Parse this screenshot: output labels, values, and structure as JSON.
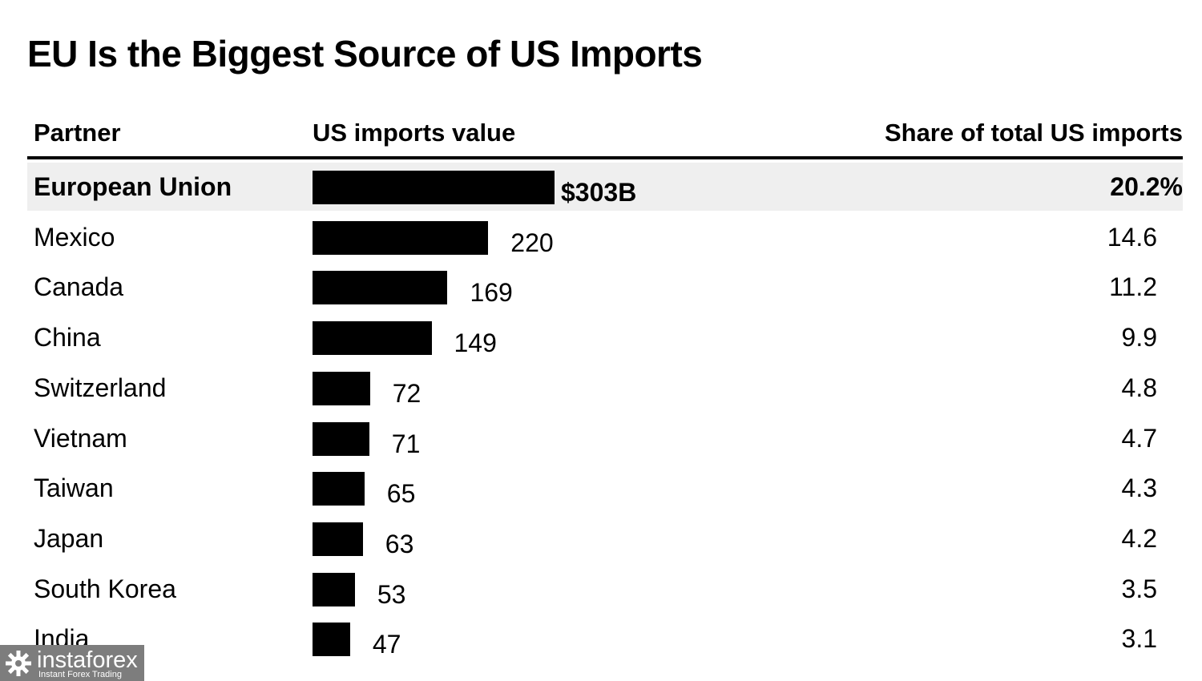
{
  "title": "EU Is the Biggest Source of US Imports",
  "headers": {
    "partner": "Partner",
    "value": "US imports value",
    "share": "Share of total US imports"
  },
  "chart_data": {
    "type": "bar",
    "orientation": "horizontal",
    "title": "EU Is the Biggest Source of US Imports",
    "categories": [
      "European Union",
      "Mexico",
      "Canada",
      "China",
      "Switzerland",
      "Vietnam",
      "Taiwan",
      "Japan",
      "South Korea",
      "India"
    ],
    "series": [
      {
        "name": "US imports value",
        "values": [
          303,
          220,
          169,
          149,
          72,
          71,
          65,
          63,
          53,
          47
        ]
      },
      {
        "name": "Share of total US imports",
        "values": [
          20.2,
          14.6,
          11.2,
          9.9,
          4.8,
          4.7,
          4.3,
          4.2,
          3.5,
          3.1
        ]
      }
    ],
    "value_labels": [
      "$303B",
      "220",
      "169",
      "149",
      "72",
      "71",
      "65",
      "63",
      "53",
      "47"
    ],
    "share_labels": [
      "20.2%",
      "14.6",
      "11.2",
      "9.9",
      "4.8",
      "4.7",
      "4.3",
      "4.2",
      "3.5",
      "3.1"
    ],
    "highlight_row": 0,
    "bar_color": "#000000",
    "highlight_color": "#efefef"
  },
  "watermark": {
    "brand": "instaforex",
    "tagline": "Instant Forex Trading",
    "icon": "gear-icon"
  }
}
